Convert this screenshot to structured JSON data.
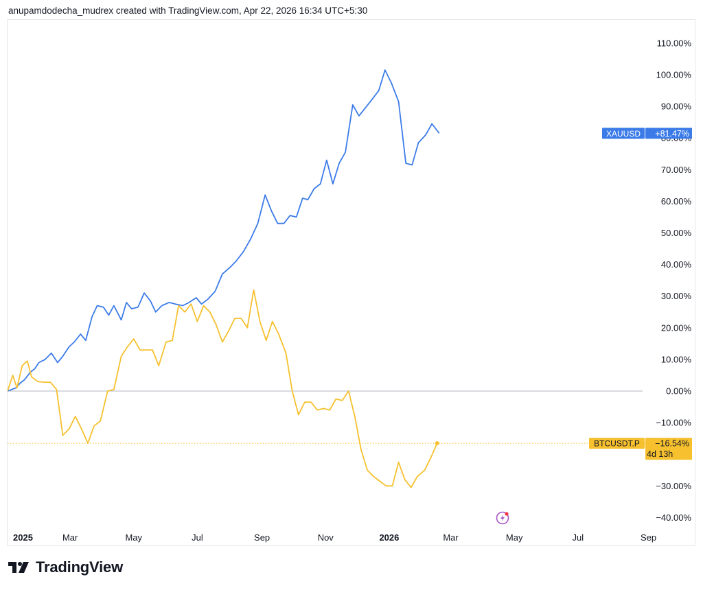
{
  "header": {
    "attribution": "anupamdodecha_mudrex created with TradingView.com, Apr 22, 2026 16:34 UTC+5:30"
  },
  "footer": {
    "brand_name": "TradingView",
    "brand_icon": "tradingview-logo-icon"
  },
  "colors": {
    "xauusd": "#3b7be8",
    "btcusdt": "#f6c02e",
    "zero_line": "#b2b5be",
    "axis_text": "#131722",
    "accent_purple": "#a855c7"
  },
  "chart_data": {
    "type": "line",
    "percent_scale": true,
    "ylim": [
      -45,
      115
    ],
    "y_ticks": [
      110,
      100,
      90,
      80,
      70,
      60,
      50,
      40,
      30,
      20,
      10,
      0,
      -10,
      -20,
      -30,
      -40
    ],
    "y_tick_labels": [
      "110.00%",
      "100.00%",
      "90.00%",
      "80.00%",
      "70.00%",
      "60.00%",
      "50.00%",
      "40.00%",
      "30.00%",
      "20.00%",
      "10.00%",
      "0.00%",
      "−10.00%",
      "−20.00%",
      "−30.00%",
      "−40.00%"
    ],
    "x_range": [
      "2024-12-31",
      "2026-09-01"
    ],
    "x_ticks": [
      {
        "date": "2025-01-01",
        "label": "2025",
        "bold": true
      },
      {
        "date": "2025-03-01",
        "label": "Mar",
        "bold": false
      },
      {
        "date": "2025-05-01",
        "label": "May",
        "bold": false
      },
      {
        "date": "2025-07-01",
        "label": "Jul",
        "bold": false
      },
      {
        "date": "2025-09-01",
        "label": "Sep",
        "bold": false
      },
      {
        "date": "2025-11-01",
        "label": "Nov",
        "bold": false
      },
      {
        "date": "2026-01-01",
        "label": "2026",
        "bold": true
      },
      {
        "date": "2026-03-01",
        "label": "Mar",
        "bold": false
      },
      {
        "date": "2026-05-01",
        "label": "May",
        "bold": false
      },
      {
        "date": "2026-07-01",
        "label": "Jul",
        "bold": false
      },
      {
        "date": "2026-09-01",
        "label": "Sep",
        "bold": false
      }
    ],
    "series": [
      {
        "name": "XAUUSD",
        "color": "#3b7be8",
        "last_label": "+81.47%",
        "points": [
          [
            "2024-12-31",
            0
          ],
          [
            "2025-01-04",
            0.5
          ],
          [
            "2025-01-08",
            1
          ],
          [
            "2025-01-12",
            2.5
          ],
          [
            "2025-01-16",
            3.5
          ],
          [
            "2025-01-22",
            6
          ],
          [
            "2025-01-26",
            7
          ],
          [
            "2025-01-30",
            9
          ],
          [
            "2025-02-05",
            10
          ],
          [
            "2025-02-11",
            12
          ],
          [
            "2025-02-17",
            9
          ],
          [
            "2025-02-22",
            11
          ],
          [
            "2025-02-28",
            14
          ],
          [
            "2025-03-05",
            15.5
          ],
          [
            "2025-03-11",
            18
          ],
          [
            "2025-03-16",
            16
          ],
          [
            "2025-03-22",
            23.5
          ],
          [
            "2025-03-27",
            27
          ],
          [
            "2025-04-02",
            26.5
          ],
          [
            "2025-04-07",
            24
          ],
          [
            "2025-04-12",
            27
          ],
          [
            "2025-04-19",
            22.5
          ],
          [
            "2025-04-24",
            28
          ],
          [
            "2025-04-29",
            26
          ],
          [
            "2025-05-05",
            26.5
          ],
          [
            "2025-05-11",
            31
          ],
          [
            "2025-05-17",
            28.5
          ],
          [
            "2025-05-22",
            25
          ],
          [
            "2025-05-28",
            27
          ],
          [
            "2025-06-04",
            28
          ],
          [
            "2025-06-10",
            27.5
          ],
          [
            "2025-06-17",
            27
          ],
          [
            "2025-06-23",
            28
          ],
          [
            "2025-06-30",
            29.5
          ],
          [
            "2025-07-05",
            27.5
          ],
          [
            "2025-07-11",
            29
          ],
          [
            "2025-07-18",
            31.5
          ],
          [
            "2025-07-25",
            37
          ],
          [
            "2025-08-01",
            39
          ],
          [
            "2025-08-07",
            41
          ],
          [
            "2025-08-14",
            44
          ],
          [
            "2025-08-21",
            48
          ],
          [
            "2025-08-28",
            53
          ],
          [
            "2025-09-04",
            62
          ],
          [
            "2025-09-10",
            57
          ],
          [
            "2025-09-16",
            53
          ],
          [
            "2025-09-22",
            53
          ],
          [
            "2025-09-28",
            55.5
          ],
          [
            "2025-10-04",
            55
          ],
          [
            "2025-10-10",
            61
          ],
          [
            "2025-10-15",
            60.5
          ],
          [
            "2025-10-21",
            64
          ],
          [
            "2025-10-27",
            65.5
          ],
          [
            "2025-11-02",
            73
          ],
          [
            "2025-11-08",
            65.5
          ],
          [
            "2025-11-14",
            72
          ],
          [
            "2025-11-20",
            75.5
          ],
          [
            "2025-11-27",
            90.5
          ],
          [
            "2025-12-03",
            87
          ],
          [
            "2025-12-09",
            89.5
          ],
          [
            "2025-12-15",
            92
          ],
          [
            "2025-12-22",
            95
          ],
          [
            "2025-12-28",
            101.5
          ],
          [
            "2026-01-03",
            97.5
          ],
          [
            "2026-01-10",
            91.5
          ],
          [
            "2026-01-17",
            72
          ],
          [
            "2026-01-23",
            71.5
          ],
          [
            "2026-01-29",
            78.5
          ],
          [
            "2026-02-05",
            81
          ],
          [
            "2026-02-11",
            84.5
          ],
          [
            "2026-02-18",
            81.5
          ]
        ]
      },
      {
        "name": "BTCUSDT.P",
        "color": "#f6c02e",
        "last_label": "−16.54%",
        "countdown": "4d 13h",
        "points": [
          [
            "2024-12-31",
            0
          ],
          [
            "2025-01-05",
            5
          ],
          [
            "2025-01-09",
            1
          ],
          [
            "2025-01-14",
            8
          ],
          [
            "2025-01-19",
            9.5
          ],
          [
            "2025-01-23",
            4.5
          ],
          [
            "2025-01-29",
            3
          ],
          [
            "2025-02-04",
            2.8
          ],
          [
            "2025-02-10",
            2.8
          ],
          [
            "2025-02-16",
            0.5
          ],
          [
            "2025-02-22",
            -14
          ],
          [
            "2025-02-28",
            -12
          ],
          [
            "2025-03-06",
            -8
          ],
          [
            "2025-03-12",
            -12
          ],
          [
            "2025-03-18",
            -16.5
          ],
          [
            "2025-03-24",
            -11
          ],
          [
            "2025-03-30",
            -9.5
          ],
          [
            "2025-04-06",
            0
          ],
          [
            "2025-04-12",
            0.5
          ],
          [
            "2025-04-19",
            11
          ],
          [
            "2025-04-25",
            14
          ],
          [
            "2025-05-01",
            16.5
          ],
          [
            "2025-05-07",
            13
          ],
          [
            "2025-05-13",
            13
          ],
          [
            "2025-05-19",
            13
          ],
          [
            "2025-05-25",
            8
          ],
          [
            "2025-06-01",
            15.5
          ],
          [
            "2025-06-07",
            16
          ],
          [
            "2025-06-13",
            27
          ],
          [
            "2025-06-19",
            25
          ],
          [
            "2025-06-25",
            27.5
          ],
          [
            "2025-07-01",
            22
          ],
          [
            "2025-07-07",
            27
          ],
          [
            "2025-07-13",
            25
          ],
          [
            "2025-07-19",
            21
          ],
          [
            "2025-07-25",
            15.5
          ],
          [
            "2025-07-31",
            19
          ],
          [
            "2025-08-06",
            23
          ],
          [
            "2025-08-12",
            23
          ],
          [
            "2025-08-18",
            20
          ],
          [
            "2025-08-24",
            32
          ],
          [
            "2025-08-30",
            22
          ],
          [
            "2025-09-05",
            16
          ],
          [
            "2025-09-11",
            22
          ],
          [
            "2025-09-17",
            18
          ],
          [
            "2025-09-24",
            12
          ],
          [
            "2025-09-30",
            0
          ],
          [
            "2025-10-06",
            -7.5
          ],
          [
            "2025-10-12",
            -3.5
          ],
          [
            "2025-10-18",
            -3.5
          ],
          [
            "2025-10-24",
            -6
          ],
          [
            "2025-10-30",
            -5.5
          ],
          [
            "2025-11-05",
            -6
          ],
          [
            "2025-11-11",
            -2.5
          ],
          [
            "2025-11-17",
            -3
          ],
          [
            "2025-11-23",
            0
          ],
          [
            "2025-11-29",
            -8
          ],
          [
            "2025-12-05",
            -18.5
          ],
          [
            "2025-12-11",
            -25
          ],
          [
            "2025-12-17",
            -27
          ],
          [
            "2025-12-23",
            -28.5
          ],
          [
            "2025-12-29",
            -30
          ],
          [
            "2026-01-04",
            -30
          ],
          [
            "2026-01-10",
            -22.5
          ],
          [
            "2026-01-16",
            -28
          ],
          [
            "2026-01-22",
            -30.5
          ],
          [
            "2026-01-28",
            -27
          ],
          [
            "2026-02-04",
            -25
          ],
          [
            "2026-02-10",
            -21
          ],
          [
            "2026-02-16",
            -16.5
          ]
        ]
      }
    ]
  }
}
